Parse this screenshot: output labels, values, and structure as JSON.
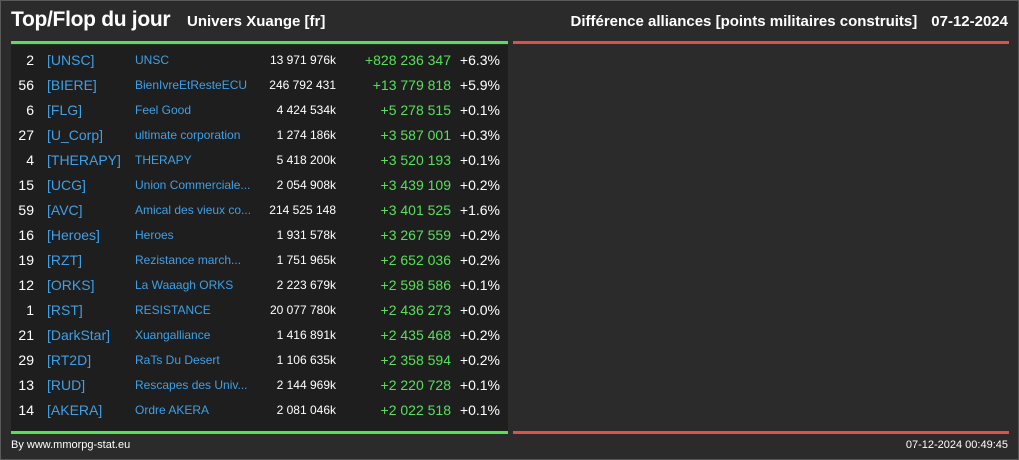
{
  "header": {
    "title": "Top/Flop du jour",
    "univers": "Univers Xuange [fr]",
    "category": "Différence alliances [points militaires construits]",
    "date": "07-12-2024"
  },
  "colors": {
    "positive": "#56e05a",
    "negative": "#e0504b",
    "link": "#3fa0e6",
    "background": "#2b2b2b",
    "panel": "#1e1e1e"
  },
  "top": [
    {
      "rank": "2",
      "tag": "[UNSC]",
      "name": "UNSC",
      "points": "13 971 976k",
      "diff": "+828 236 347",
      "pct": "+6.3%"
    },
    {
      "rank": "56",
      "tag": "[BIERE]",
      "name": "BienIvreEtResteECU",
      "points": "246 792 431",
      "diff": "+13 779 818",
      "pct": "+5.9%"
    },
    {
      "rank": "6",
      "tag": "[FLG]",
      "name": "Feel Good",
      "points": "4 424 534k",
      "diff": "+5 278 515",
      "pct": "+0.1%"
    },
    {
      "rank": "27",
      "tag": "[U_Corp]",
      "name": "ultimate corporation",
      "points": "1 274 186k",
      "diff": "+3 587 001",
      "pct": "+0.3%"
    },
    {
      "rank": "4",
      "tag": "[THERAPY]",
      "name": "THERAPY",
      "points": "5 418 200k",
      "diff": "+3 520 193",
      "pct": "+0.1%"
    },
    {
      "rank": "15",
      "tag": "[UCG]",
      "name": "Union Commerciale...",
      "points": "2 054 908k",
      "diff": "+3 439 109",
      "pct": "+0.2%"
    },
    {
      "rank": "59",
      "tag": "[AVC]",
      "name": "Amical des vieux co...",
      "points": "214 525 148",
      "diff": "+3 401 525",
      "pct": "+1.6%"
    },
    {
      "rank": "16",
      "tag": "[Heroes]",
      "name": "Heroes",
      "points": "1 931 578k",
      "diff": "+3 267 559",
      "pct": "+0.2%"
    },
    {
      "rank": "19",
      "tag": "[RZT]",
      "name": "Rezistance march...",
      "points": "1 751 965k",
      "diff": "+2 652 036",
      "pct": "+0.2%"
    },
    {
      "rank": "12",
      "tag": "[ORKS]",
      "name": "La Waaagh ORKS",
      "points": "2 223 679k",
      "diff": "+2 598 586",
      "pct": "+0.1%"
    },
    {
      "rank": "1",
      "tag": "[RST]",
      "name": "RESISTANCE",
      "points": "20 077 780k",
      "diff": "+2 436 273",
      "pct": "+0.0%"
    },
    {
      "rank": "21",
      "tag": "[DarkStar]",
      "name": "Xuangalliance",
      "points": "1 416 891k",
      "diff": "+2 435 468",
      "pct": "+0.2%"
    },
    {
      "rank": "29",
      "tag": "[RT2D]",
      "name": "RaTs Du Desert",
      "points": "1 106 635k",
      "diff": "+2 358 594",
      "pct": "+0.2%"
    },
    {
      "rank": "13",
      "tag": "[RUD]",
      "name": "Rescapes des Univ...",
      "points": "2 144 969k",
      "diff": "+2 220 728",
      "pct": "+0.1%"
    },
    {
      "rank": "14",
      "tag": "[AKERA]",
      "name": "Ordre AKERA",
      "points": "2 081 046k",
      "diff": "+2 022 518",
      "pct": "+0.1%"
    }
  ],
  "footer": {
    "source": "By www.mmorpg-stat.eu",
    "timestamp": "07-12-2024 00:49:45"
  }
}
